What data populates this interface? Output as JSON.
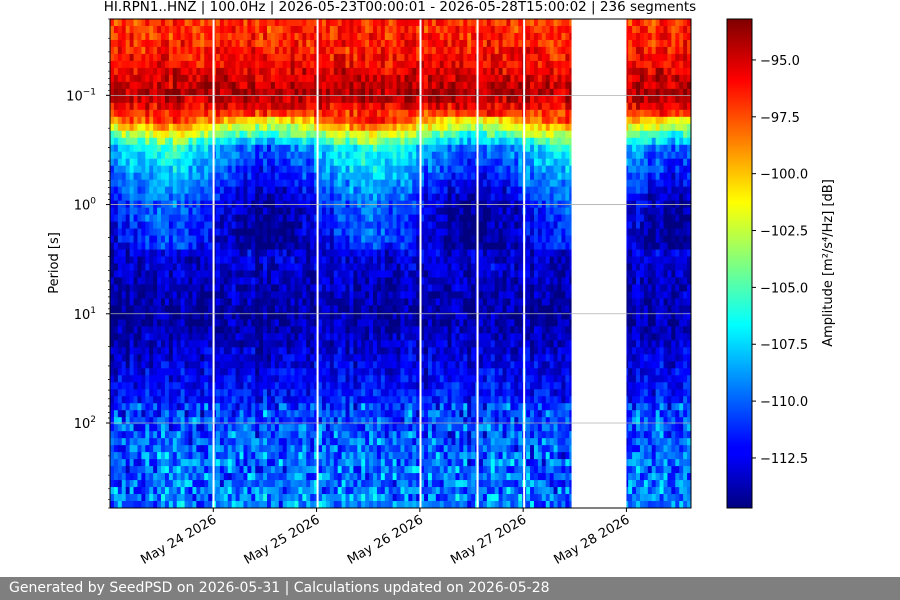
{
  "chart_data": {
    "type": "heatmap",
    "title": "HI.RPN1..HNZ | 100.0Hz | 2026-05-23T00:00:01 - 2026-05-28T15:00:02 | 236 segments",
    "ylabel": "Period [s]",
    "xlabel": "",
    "x_range": [
      "2026-05-23T00:00:01",
      "2026-05-28T15:00:02"
    ],
    "x_ticks": [
      {
        "date": "2026-05-24",
        "label": "May 24 2026"
      },
      {
        "date": "2026-05-25",
        "label": "May 25 2026"
      },
      {
        "date": "2026-05-26",
        "label": "May 26 2026"
      },
      {
        "date": "2026-05-27",
        "label": "May 27 2026"
      },
      {
        "date": "2026-05-28",
        "label": "May 28 2026"
      }
    ],
    "y_scale": "log",
    "y_inverted": true,
    "y_range": [
      0.02,
      600
    ],
    "y_ticks": [
      {
        "value": 0.1,
        "base": "10",
        "exp": "−1"
      },
      {
        "value": 1,
        "base": "10",
        "exp": "0"
      },
      {
        "value": 10,
        "base": "10",
        "exp": "1"
      },
      {
        "value": 100,
        "base": "10",
        "exp": "2"
      }
    ],
    "grid": "horizontal at major ticks",
    "gaps": [
      {
        "start": "2026-05-23T23:50:00",
        "end": "2026-05-24T00:15:00"
      },
      {
        "start": "2026-05-25T00:00:00",
        "end": "2026-05-25T00:20:00"
      },
      {
        "start": "2026-05-25T23:55:00",
        "end": "2026-05-26T00:15:00"
      },
      {
        "start": "2026-05-26T13:10:00",
        "end": "2026-05-26T13:30:00"
      },
      {
        "start": "2026-05-27T00:00:00",
        "end": "2026-05-27T00:20:00"
      },
      {
        "start": "2026-05-27T11:15:00",
        "end": "2026-05-28T00:00:00"
      }
    ],
    "colorbar": {
      "label": "Amplitude [m²/s⁴/Hz] [dB]",
      "colormap": "jet",
      "range": [
        -114.7,
        -93.2
      ],
      "ticks": [
        "−95.0",
        "−97.5",
        "−100.0",
        "−102.5",
        "−105.0",
        "−107.5",
        "−110.0",
        "−112.5"
      ],
      "tick_values": [
        -95.0,
        -97.5,
        -100.0,
        -102.5,
        -105.0,
        -107.5,
        -110.0,
        -112.5
      ]
    },
    "psd_profile_db": [
      {
        "period": 0.02,
        "value": -97
      },
      {
        "period": 0.05,
        "value": -96
      },
      {
        "period": 0.1,
        "value": -94
      },
      {
        "period": 0.15,
        "value": -97
      },
      {
        "period": 0.3,
        "value": -108
      },
      {
        "period": 1,
        "value": -112
      },
      {
        "period": 10,
        "value": -114
      },
      {
        "period": 100,
        "value": -111
      },
      {
        "period": 600,
        "value": -110
      }
    ]
  },
  "footer": {
    "text": "Generated by SeedPSD on 2026-05-31 | Calculations updated on 2026-05-28"
  }
}
